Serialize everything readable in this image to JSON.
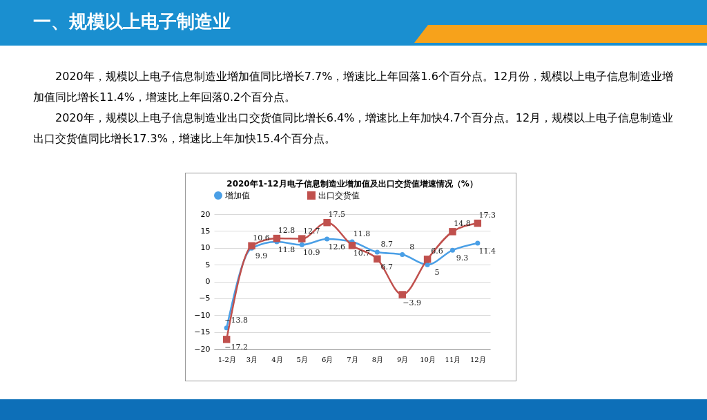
{
  "chart_data": {
    "type": "line",
    "title": "2020年1-12月电子信息制造业增加值及出口交货值增速情况（%）",
    "annotations": [
      "一、规模以上电子制造业",
      "2020年，规模以上电子信息制造业增加值同比增长7.7%，增速比上年回落1.6个百分点。12月份，规模以上电子信息制造业增加值同比增长11.4%，增速比上年回落0.2个百分点。",
      "2020年，规模以上电子信息制造业出口交货值同比增长6.4%，增速比上年加快4.7个百分点。12月，规模以上电子信息制造业出口交货值同比增长17.3%，增速比上年加快15.4个百分点。"
    ],
    "categories": [
      "1-2月",
      "3月",
      "4月",
      "5月",
      "6月",
      "7月",
      "8月",
      "9月",
      "10月",
      "11月",
      "12月"
    ],
    "series": [
      {
        "name": "增加值",
        "color": "#4a9fe6",
        "marker": "circle",
        "values": [
          -13.8,
          9.9,
          11.8,
          10.9,
          12.6,
          11.8,
          8.7,
          8,
          5,
          9.3,
          11.4
        ]
      },
      {
        "name": "出口交货值",
        "color": "#c0504d",
        "marker": "square",
        "values": [
          -17.2,
          10.6,
          12.8,
          12.7,
          17.5,
          10.7,
          6.7,
          -3.9,
          6.6,
          14.8,
          17.3
        ]
      }
    ],
    "ylim": [
      -20,
      20
    ],
    "yticks": [
      -20,
      -15,
      -10,
      -5,
      0,
      5,
      10,
      15,
      20
    ],
    "grid": "y",
    "legend": "top",
    "data_labels": true
  }
}
